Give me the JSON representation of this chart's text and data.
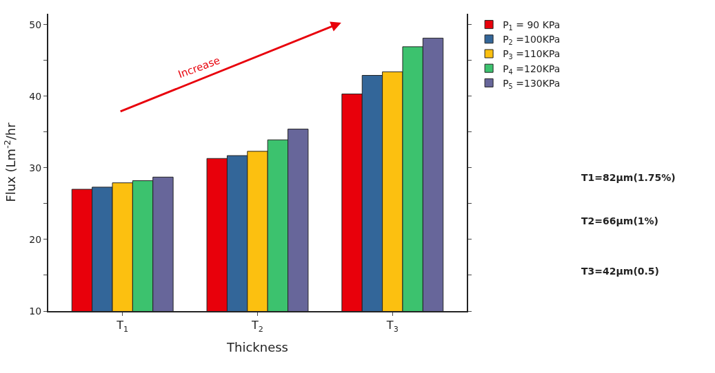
{
  "chart_data": {
    "type": "bar",
    "xlabel": "Thickness",
    "ylabel": "Flux (Lm$^{-2}$/hr",
    "categories": [
      "T$_{1}$",
      "T$_{2}$",
      "T$_{3}$"
    ],
    "series": [
      {
        "name": "P$_{1}$ = 90 KPa",
        "color": "#e8000b",
        "values": [
          27.0,
          31.3,
          40.3
        ]
      },
      {
        "name": "P$_{2}$ =100KPa",
        "color": "#336699",
        "values": [
          27.3,
          31.7,
          42.9
        ]
      },
      {
        "name": "P$_{3}$ =110KPa",
        "color": "#fcc010",
        "values": [
          27.9,
          32.3,
          43.4
        ]
      },
      {
        "name": "P$_{4}$ =120KPa",
        "color": "#3cc26e",
        "values": [
          28.2,
          33.9,
          46.9
        ]
      },
      {
        "name": "P$_{5}$ =130KPa",
        "color": "#67669a",
        "values": [
          28.7,
          35.4,
          48.1
        ]
      }
    ],
    "ylim": [
      10,
      51.5
    ],
    "yticks": [
      10,
      {
        "value": 15,
        "label": null
      },
      20,
      {
        "value": 25,
        "label": null
      },
      30,
      {
        "value": 35,
        "label": null
      },
      40,
      {
        "value": 45,
        "label": null
      },
      50
    ],
    "legend": "top right",
    "annotations": [
      "Increase",
      "T1=82μm(1.75%)",
      "T2=66μm(1%)",
      "T3=42μm(0.5)"
    ]
  }
}
